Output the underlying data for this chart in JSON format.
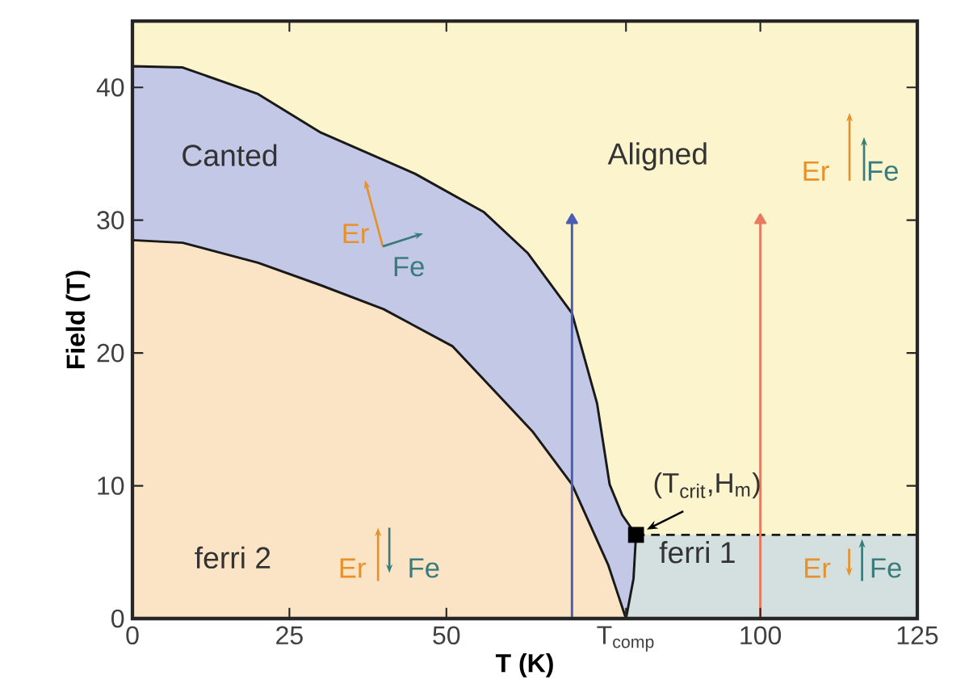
{
  "chart_data": {
    "type": "line",
    "xlabel": "T (K)",
    "ylabel": "Field (T)",
    "xlim": [
      0,
      125
    ],
    "ylim": [
      0,
      45
    ],
    "xticks": [
      0,
      25,
      50,
      {
        "value": 78.6,
        "label": "T$_{comp}$"
      },
      100,
      125
    ],
    "yticks": [
      0,
      10,
      20,
      30,
      40
    ],
    "bands": [
      {
        "axis": "y",
        "from": 0,
        "to": 45,
        "color": "#fcf4cc"
      },
      {
        "axis": "y",
        "from": 0,
        "to": 6.3,
        "color": "#d3e0df"
      }
    ],
    "series": [
      {
        "type": "area",
        "color": "#c3c8e6",
        "x": [
          0,
          8,
          20,
          30,
          45,
          56,
          63,
          70,
          74,
          76,
          78,
          80.2,
          79.8,
          78.6
        ],
        "values": [
          41.6,
          41.5,
          39.5,
          36.6,
          33.5,
          30.6,
          27.5,
          23,
          16.2,
          10.1,
          7.8,
          6.3,
          3,
          0
        ]
      },
      {
        "type": "area",
        "color": "#fbe4c6",
        "x": [
          0,
          8,
          20,
          30,
          40,
          51,
          63.7,
          70,
          75.8,
          78.6
        ],
        "values": [
          28.5,
          28.3,
          26.8,
          25.1,
          23.3,
          20.5,
          14.1,
          10.1,
          4,
          0
        ]
      },
      {
        "color": "#1a1a1a",
        "line_style": "dashed",
        "x": [
          80.2,
          125
        ],
        "values": [
          6.3,
          6.3
        ]
      },
      {
        "color": "#4a5cb4",
        "x": [
          70,
          70
        ],
        "values": [
          0,
          30
        ]
      },
      {
        "color": "#e87a5e",
        "x": [
          100,
          100
        ],
        "values": [
          0,
          30
        ]
      },
      {
        "type": "scatter",
        "marker": "square",
        "color": "#000000",
        "x": [
          80.2
        ],
        "values": [
          6.3
        ]
      }
    ],
    "annotations": [
      "Canted",
      "Aligned",
      "ferri 2",
      "ferri 1",
      {
        "text": "(T$_{crit}$,H$_{m}$)",
        "x": 80.2,
        "y": 6.3
      },
      "Er",
      "Fe",
      "Er",
      "Fe",
      "Er",
      "Fe",
      "Er",
      "Fe"
    ]
  }
}
